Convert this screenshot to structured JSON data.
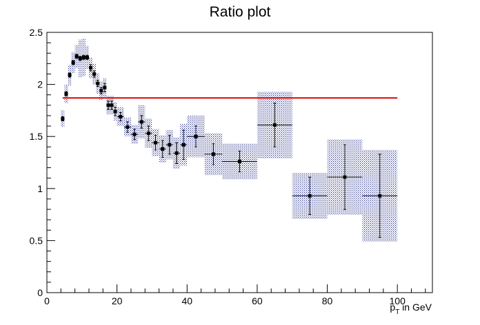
{
  "chart_data": {
    "type": "scatter",
    "title": "Ratio plot",
    "xlabel": {
      "main": "p",
      "sub": "T",
      "suffix": " in GeV"
    },
    "ylabel": "",
    "xlim": [
      0,
      110
    ],
    "ylim": [
      0,
      2.5
    ],
    "x_ticks": [
      0,
      20,
      40,
      60,
      80,
      100
    ],
    "y_ticks": [
      0,
      0.5,
      1,
      1.5,
      2,
      2.5
    ],
    "x_tick_labels": [
      "0",
      "20",
      "40",
      "60",
      "80",
      "100"
    ],
    "y_tick_labels": [
      "0",
      "0.5",
      "1",
      "1.5",
      "2",
      "2.5"
    ],
    "grid": false,
    "reference_line": {
      "y": 1.87,
      "x_start": 4.5,
      "x_end": 100,
      "color": "#e00000"
    },
    "series": [
      {
        "marker_color": "#000000",
        "band_color": "#1a237e",
        "points": [
          {
            "x": 4.5,
            "xerr": 0.5,
            "y": 1.67,
            "yerr": 0.02,
            "band": 0.08
          },
          {
            "x": 5.5,
            "xerr": 0.5,
            "y": 1.91,
            "yerr": 0.02,
            "band": 0.09
          },
          {
            "x": 6.5,
            "xerr": 0.5,
            "y": 2.09,
            "yerr": 0.02,
            "band": 0.1
          },
          {
            "x": 7.5,
            "xerr": 0.5,
            "y": 2.21,
            "yerr": 0.02,
            "band": 0.1
          },
          {
            "x": 8.5,
            "xerr": 0.5,
            "y": 2.27,
            "yerr": 0.02,
            "band": 0.11
          },
          {
            "x": 9.5,
            "xerr": 0.5,
            "y": 2.25,
            "yerr": 0.02,
            "band": 0.18
          },
          {
            "x": 10.5,
            "xerr": 0.5,
            "y": 2.26,
            "yerr": 0.02,
            "band": 0.18
          },
          {
            "x": 11.5,
            "xerr": 0.5,
            "y": 2.26,
            "yerr": 0.02,
            "band": 0.11
          },
          {
            "x": 12.5,
            "xerr": 0.5,
            "y": 2.16,
            "yerr": 0.03,
            "band": 0.1
          },
          {
            "x": 13.5,
            "xerr": 0.5,
            "y": 2.1,
            "yerr": 0.03,
            "band": 0.1
          },
          {
            "x": 14.5,
            "xerr": 0.5,
            "y": 2.01,
            "yerr": 0.03,
            "band": 0.1
          },
          {
            "x": 15.5,
            "xerr": 0.5,
            "y": 1.94,
            "yerr": 0.03,
            "band": 0.09
          },
          {
            "x": 16.5,
            "xerr": 0.5,
            "y": 1.97,
            "yerr": 0.04,
            "band": 0.09
          },
          {
            "x": 17.5,
            "xerr": 0.5,
            "y": 1.8,
            "yerr": 0.04,
            "band": 0.09
          },
          {
            "x": 18.5,
            "xerr": 0.5,
            "y": 1.8,
            "yerr": 0.04,
            "band": 0.09
          },
          {
            "x": 19.5,
            "xerr": 0.5,
            "y": 1.74,
            "yerr": 0.04,
            "band": 0.09
          },
          {
            "x": 21,
            "xerr": 1,
            "y": 1.69,
            "yerr": 0.04,
            "band": 0.09
          },
          {
            "x": 23,
            "xerr": 1,
            "y": 1.59,
            "yerr": 0.05,
            "band": 0.09
          },
          {
            "x": 25,
            "xerr": 1,
            "y": 1.52,
            "yerr": 0.05,
            "band": 0.09
          },
          {
            "x": 27,
            "xerr": 1,
            "y": 1.64,
            "yerr": 0.06,
            "band": 0.16
          },
          {
            "x": 29,
            "xerr": 1,
            "y": 1.53,
            "yerr": 0.07,
            "band": 0.14
          },
          {
            "x": 31,
            "xerr": 1,
            "y": 1.44,
            "yerr": 0.07,
            "band": 0.13
          },
          {
            "x": 33,
            "xerr": 1,
            "y": 1.38,
            "yerr": 0.08,
            "band": 0.13
          },
          {
            "x": 35,
            "xerr": 1,
            "y": 1.42,
            "yerr": 0.09,
            "band": 0.14
          },
          {
            "x": 37,
            "xerr": 1,
            "y": 1.34,
            "yerr": 0.1,
            "band": 0.15
          },
          {
            "x": 39,
            "xerr": 1,
            "y": 1.42,
            "yerr": 0.14,
            "band": 0.2
          },
          {
            "x": 42.5,
            "xerr": 2.5,
            "y": 1.5,
            "yerr": 0.1,
            "band": 0.2
          },
          {
            "x": 47.5,
            "xerr": 2.5,
            "y": 1.33,
            "yerr": 0.1,
            "band": 0.2
          },
          {
            "x": 55,
            "xerr": 5,
            "y": 1.26,
            "yerr": 0.1,
            "band": 0.17
          },
          {
            "x": 65,
            "xerr": 5,
            "y": 1.61,
            "yerr": 0.21,
            "band": 0.32
          },
          {
            "x": 75,
            "xerr": 5,
            "y": 0.93,
            "yerr": 0.18,
            "band": 0.22
          },
          {
            "x": 85,
            "xerr": 5,
            "y": 1.11,
            "yerr": 0.31,
            "band": 0.36
          },
          {
            "x": 95,
            "xerr": 5,
            "y": 0.93,
            "yerr": 0.4,
            "band": 0.44
          }
        ]
      }
    ]
  }
}
